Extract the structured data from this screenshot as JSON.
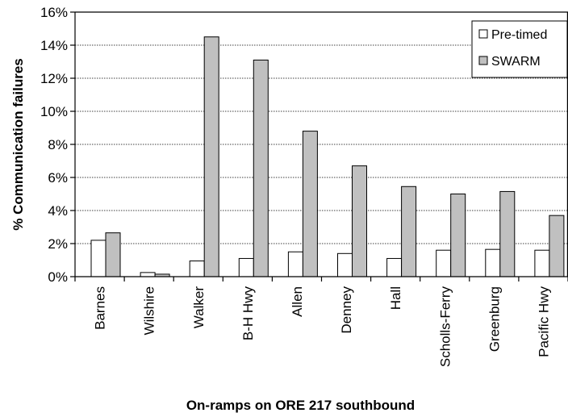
{
  "chart_data": {
    "type": "bar",
    "title": "",
    "xlabel": "On-ramps on ORE 217 southbound",
    "ylabel": "% Communication failures",
    "categories": [
      "Barnes",
      "Wilshire",
      "Walker",
      "B-H Hwy",
      "Allen",
      "Denney",
      "Hall",
      "Scholls-Ferry",
      "Greenburg",
      "Pacific Hwy"
    ],
    "series": [
      {
        "name": "Pre-timed",
        "color": "#ffffff",
        "values": [
          2.2,
          0.25,
          0.95,
          1.1,
          1.5,
          1.4,
          1.1,
          1.6,
          1.65,
          1.6
        ]
      },
      {
        "name": "SWARM",
        "color": "#c0c0c0",
        "values": [
          2.65,
          0.15,
          14.5,
          13.1,
          8.8,
          6.7,
          5.45,
          5.0,
          5.15,
          3.7
        ]
      }
    ],
    "ylim": [
      0,
      16
    ],
    "yticks": [
      0,
      2,
      4,
      6,
      8,
      10,
      12,
      14,
      16
    ],
    "ytick_labels": [
      "0%",
      "2%",
      "4%",
      "6%",
      "8%",
      "10%",
      "12%",
      "14%",
      "16%"
    ],
    "grid": true,
    "legend_position": "top-right"
  }
}
